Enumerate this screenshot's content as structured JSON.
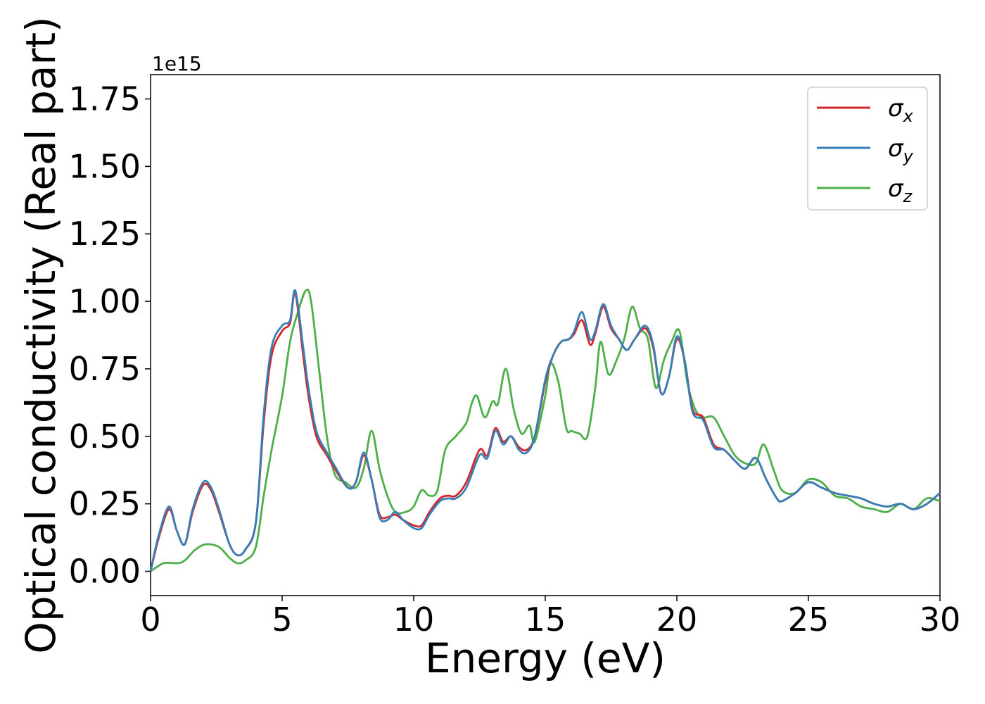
{
  "chart_data": {
    "type": "line",
    "title": "",
    "xlabel": "Energy (eV)",
    "ylabel": "Optical conductivity (Real part)",
    "y_offset_label": "1e15",
    "xlim": [
      0,
      30
    ],
    "ylim": [
      -0.09,
      1.84
    ],
    "x_ticks": [
      0,
      5,
      10,
      15,
      20,
      25,
      30
    ],
    "x_tick_labels": [
      "0",
      "5",
      "10",
      "15",
      "20",
      "25",
      "30"
    ],
    "y_ticks": [
      0.0,
      0.25,
      0.5,
      0.75,
      1.0,
      1.25,
      1.5,
      1.75
    ],
    "y_tick_labels": [
      "0.00",
      "0.25",
      "0.50",
      "0.75",
      "1.00",
      "1.25",
      "1.50",
      "1.75"
    ],
    "grid": false,
    "legend_position": "top-right",
    "series": [
      {
        "name": "σx",
        "name_base": "σ",
        "name_sub": "x",
        "color": "#d62728",
        "x": [
          0,
          0.3,
          0.7,
          1.0,
          1.3,
          1.6,
          2.0,
          2.3,
          2.6,
          3.0,
          3.3,
          3.6,
          4.0,
          4.3,
          4.6,
          5.0,
          5.3,
          5.5,
          5.8,
          6.0,
          6.3,
          6.7,
          7.0,
          7.5,
          7.8,
          8.1,
          8.4,
          8.7,
          9.0,
          9.3,
          9.6,
          10.0,
          10.3,
          10.6,
          11.0,
          11.3,
          11.6,
          12.0,
          12.5,
          12.8,
          13.1,
          13.4,
          13.7,
          14.0,
          14.3,
          14.6,
          15.0,
          15.3,
          15.6,
          15.9,
          16.1,
          16.4,
          16.7,
          16.9,
          17.2,
          17.5,
          17.8,
          18.1,
          18.4,
          18.8,
          19.1,
          19.4,
          19.7,
          20.0,
          20.3,
          20.6,
          21.0,
          21.4,
          21.8,
          22.2,
          22.6,
          23.0,
          23.4,
          23.8,
          24.0,
          24.5,
          25.0,
          25.5,
          26.0,
          26.5,
          27.0,
          27.5,
          28.0,
          28.5,
          29.0,
          29.5,
          30.0
        ],
        "y": [
          0.0,
          0.12,
          0.23,
          0.15,
          0.1,
          0.22,
          0.32,
          0.3,
          0.22,
          0.1,
          0.06,
          0.08,
          0.18,
          0.55,
          0.8,
          0.89,
          0.92,
          1.03,
          0.8,
          0.65,
          0.5,
          0.43,
          0.38,
          0.31,
          0.33,
          0.43,
          0.34,
          0.21,
          0.2,
          0.21,
          0.19,
          0.17,
          0.17,
          0.22,
          0.27,
          0.28,
          0.28,
          0.33,
          0.45,
          0.43,
          0.53,
          0.48,
          0.5,
          0.46,
          0.45,
          0.5,
          0.7,
          0.8,
          0.85,
          0.86,
          0.88,
          0.93,
          0.84,
          0.88,
          0.98,
          0.9,
          0.86,
          0.82,
          0.86,
          0.9,
          0.83,
          0.66,
          0.72,
          0.86,
          0.78,
          0.6,
          0.57,
          0.47,
          0.45,
          0.41,
          0.38,
          0.42,
          0.34,
          0.27,
          0.26,
          0.29,
          0.33,
          0.31,
          0.29,
          0.28,
          0.27,
          0.25,
          0.24,
          0.25,
          0.23,
          0.25,
          0.29
        ]
      },
      {
        "name": "σy",
        "name_base": "σ",
        "name_sub": "y",
        "color": "#377eb8",
        "x": [
          0,
          0.3,
          0.7,
          1.0,
          1.3,
          1.6,
          2.0,
          2.3,
          2.6,
          3.0,
          3.3,
          3.6,
          4.0,
          4.3,
          4.6,
          5.0,
          5.3,
          5.5,
          5.8,
          6.0,
          6.3,
          6.7,
          7.0,
          7.5,
          7.8,
          8.1,
          8.4,
          8.7,
          9.0,
          9.3,
          9.6,
          10.0,
          10.3,
          10.6,
          11.0,
          11.3,
          11.6,
          12.0,
          12.5,
          12.8,
          13.1,
          13.4,
          13.7,
          14.0,
          14.3,
          14.6,
          15.0,
          15.3,
          15.6,
          15.9,
          16.1,
          16.4,
          16.7,
          16.9,
          17.2,
          17.5,
          17.8,
          18.1,
          18.4,
          18.8,
          19.1,
          19.4,
          19.7,
          20.0,
          20.3,
          20.6,
          21.0,
          21.4,
          21.8,
          22.2,
          22.6,
          23.0,
          23.4,
          23.8,
          24.0,
          24.5,
          25.0,
          25.5,
          26.0,
          26.5,
          27.0,
          27.5,
          28.0,
          28.5,
          29.0,
          29.5,
          30.0
        ],
        "y": [
          0.0,
          0.13,
          0.24,
          0.15,
          0.1,
          0.23,
          0.33,
          0.31,
          0.23,
          0.1,
          0.06,
          0.08,
          0.18,
          0.58,
          0.83,
          0.91,
          0.93,
          1.04,
          0.83,
          0.68,
          0.52,
          0.44,
          0.39,
          0.31,
          0.33,
          0.44,
          0.34,
          0.2,
          0.19,
          0.22,
          0.19,
          0.16,
          0.16,
          0.21,
          0.26,
          0.27,
          0.27,
          0.31,
          0.43,
          0.42,
          0.52,
          0.47,
          0.5,
          0.45,
          0.44,
          0.5,
          0.71,
          0.8,
          0.85,
          0.86,
          0.89,
          0.96,
          0.86,
          0.89,
          0.99,
          0.91,
          0.86,
          0.82,
          0.86,
          0.91,
          0.84,
          0.66,
          0.72,
          0.87,
          0.78,
          0.59,
          0.56,
          0.46,
          0.45,
          0.41,
          0.38,
          0.42,
          0.34,
          0.27,
          0.26,
          0.29,
          0.33,
          0.31,
          0.29,
          0.28,
          0.27,
          0.25,
          0.24,
          0.25,
          0.23,
          0.25,
          0.29
        ]
      },
      {
        "name": "σz",
        "name_base": "σ",
        "name_sub": "z",
        "color": "#4daf4a",
        "x": [
          0,
          0.5,
          1.0,
          1.3,
          1.7,
          2.1,
          2.6,
          3.0,
          3.3,
          3.6,
          4.0,
          4.3,
          4.6,
          5.0,
          5.3,
          5.6,
          5.9,
          6.1,
          6.4,
          6.7,
          7.0,
          7.4,
          7.8,
          8.1,
          8.4,
          8.7,
          9.0,
          9.3,
          9.7,
          10.0,
          10.3,
          10.6,
          10.9,
          11.2,
          11.6,
          12.0,
          12.2,
          12.4,
          12.7,
          13.0,
          13.2,
          13.5,
          13.8,
          14.1,
          14.4,
          14.6,
          15.0,
          15.2,
          15.5,
          15.8,
          16.0,
          16.3,
          16.6,
          16.9,
          17.1,
          17.4,
          17.7,
          18.0,
          18.3,
          18.6,
          18.9,
          19.2,
          19.5,
          19.8,
          20.1,
          20.4,
          20.7,
          21.0,
          21.4,
          21.8,
          22.2,
          22.6,
          23.0,
          23.3,
          23.7,
          24.0,
          24.5,
          25.0,
          25.5,
          26.0,
          26.5,
          27.0,
          27.5,
          28.0,
          28.5,
          29.0,
          29.5,
          30.0
        ],
        "y": [
          0.0,
          0.03,
          0.03,
          0.04,
          0.08,
          0.1,
          0.09,
          0.05,
          0.03,
          0.04,
          0.09,
          0.28,
          0.45,
          0.65,
          0.85,
          0.96,
          1.04,
          1.0,
          0.75,
          0.5,
          0.36,
          0.33,
          0.31,
          0.38,
          0.52,
          0.38,
          0.28,
          0.22,
          0.22,
          0.24,
          0.3,
          0.28,
          0.3,
          0.45,
          0.5,
          0.55,
          0.62,
          0.65,
          0.57,
          0.63,
          0.62,
          0.75,
          0.6,
          0.51,
          0.54,
          0.48,
          0.65,
          0.77,
          0.7,
          0.53,
          0.52,
          0.51,
          0.5,
          0.68,
          0.85,
          0.73,
          0.78,
          0.86,
          0.98,
          0.9,
          0.86,
          0.68,
          0.78,
          0.85,
          0.89,
          0.7,
          0.6,
          0.57,
          0.57,
          0.5,
          0.43,
          0.4,
          0.4,
          0.47,
          0.37,
          0.3,
          0.29,
          0.34,
          0.33,
          0.28,
          0.27,
          0.24,
          0.23,
          0.22,
          0.25,
          0.23,
          0.27,
          0.26
        ]
      }
    ]
  }
}
